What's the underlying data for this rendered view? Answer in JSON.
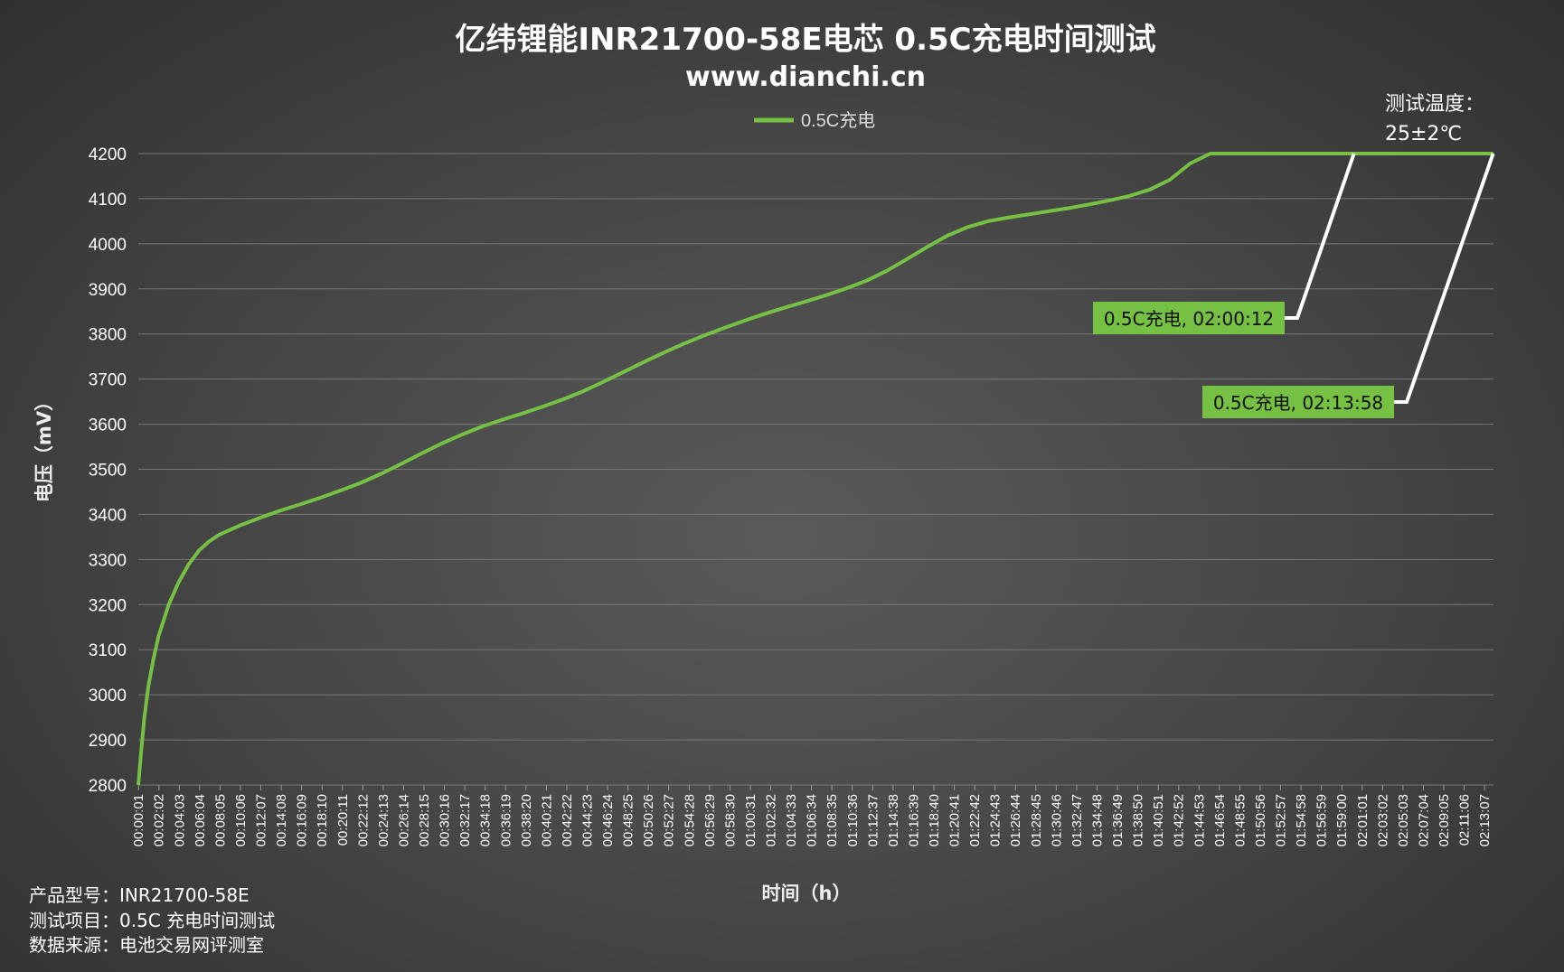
{
  "chart_data": {
    "type": "line",
    "title": "亿纬锂能INR21700-58E电芯 0.5C充电时间测试",
    "subtitle": "www.dianchi.cn",
    "xlabel": "时间（h）",
    "ylabel": "电压（mV）",
    "ylim": [
      2800,
      4200
    ],
    "y_ticks": [
      "4200",
      "4100",
      "4000",
      "3900",
      "3800",
      "3700",
      "3600",
      "3500",
      "3400",
      "3300",
      "3200",
      "3100",
      "3000",
      "2900",
      "2800"
    ],
    "x_ticks": [
      "00:00:01",
      "00:02:02",
      "00:04:03",
      "00:06:04",
      "00:08:05",
      "00:10:06",
      "00:12:07",
      "00:14:08",
      "00:16:09",
      "00:18:10",
      "00:20:11",
      "00:22:12",
      "00:24:13",
      "00:26:14",
      "00:28:15",
      "00:30:16",
      "00:32:17",
      "00:34:18",
      "00:36:19",
      "00:38:20",
      "00:40:21",
      "00:42:22",
      "00:44:23",
      "00:46:24",
      "00:48:25",
      "00:50:26",
      "00:52:27",
      "00:54:28",
      "00:56:29",
      "00:58:30",
      "01:00:31",
      "01:02:32",
      "01:04:33",
      "01:06:34",
      "01:08:35",
      "01:10:36",
      "01:12:37",
      "01:14:38",
      "01:16:39",
      "01:18:40",
      "01:20:41",
      "01:22:42",
      "01:24:43",
      "01:26:44",
      "01:28:45",
      "01:30:46",
      "01:32:47",
      "01:34:48",
      "01:36:49",
      "01:38:50",
      "01:40:51",
      "01:42:52",
      "01:44:53",
      "01:46:54",
      "01:48:55",
      "01:50:56",
      "01:52:57",
      "01:54:58",
      "01:56:59",
      "01:59:00",
      "02:01:01",
      "02:03:02",
      "02:05:03",
      "02:07:04",
      "02:09:05",
      "02:11:06",
      "02:13:07"
    ],
    "grid": true,
    "legend_position": "top-center",
    "series": [
      {
        "name": "0.5C充电",
        "color": "#76c043",
        "x_minutes": [
          0,
          0.3,
          0.6,
          1,
          1.5,
          2,
          3,
          4,
          5,
          6,
          7,
          8,
          10,
          12,
          14,
          16,
          18,
          20,
          22,
          24,
          26,
          28,
          30,
          32,
          34,
          36,
          38,
          40,
          42,
          44,
          46,
          48,
          50,
          52,
          54,
          56,
          58,
          60,
          62,
          64,
          66,
          68,
          70,
          72,
          74,
          76,
          78,
          80,
          82,
          84,
          86,
          88,
          90,
          92,
          94,
          96,
          98,
          100,
          102,
          104,
          106,
          108,
          110,
          112,
          114,
          116,
          118,
          120.2,
          122,
          124,
          126,
          128,
          130,
          132,
          134,
          134
        ],
        "values": [
          2800,
          2880,
          2950,
          3020,
          3080,
          3130,
          3200,
          3250,
          3290,
          3320,
          3340,
          3355,
          3375,
          3392,
          3408,
          3422,
          3437,
          3453,
          3470,
          3490,
          3512,
          3535,
          3557,
          3577,
          3595,
          3610,
          3624,
          3639,
          3655,
          3673,
          3694,
          3716,
          3738,
          3759,
          3779,
          3797,
          3814,
          3830,
          3845,
          3859,
          3872,
          3886,
          3901,
          3918,
          3940,
          3966,
          3993,
          4018,
          4037,
          4050,
          4058,
          4065,
          4072,
          4079,
          4087,
          4096,
          4106,
          4120,
          4142,
          4178,
          4200,
          4200,
          4200,
          4200,
          4200,
          4200,
          4200,
          4200,
          4200,
          4200,
          4200,
          4200,
          4200,
          4200,
          4200,
          4200
        ]
      }
    ],
    "annotations": [
      {
        "text": "0.5C充电, 02:00:12",
        "time": "02:00:12",
        "value": 4200
      },
      {
        "text": "0.5C充电, 02:13:58",
        "time": "02:13:58",
        "value": 4200
      }
    ],
    "temperature_note": [
      "测试温度：",
      "25±2℃"
    ],
    "info_lines": [
      "产品型号：INR21700-58E",
      "测试项目：0.5C 充电时间测试",
      "数据来源：电池交易网评测室"
    ]
  }
}
